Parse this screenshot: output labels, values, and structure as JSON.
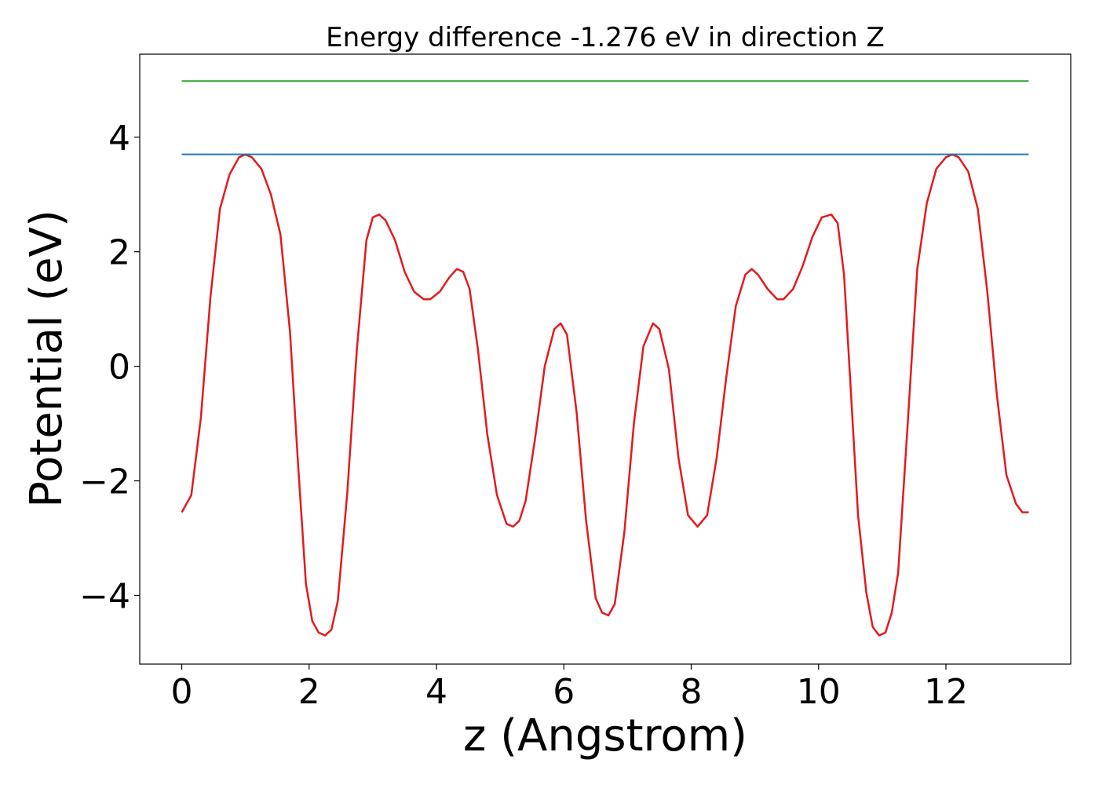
{
  "chart_data": {
    "type": "line",
    "title": "Energy difference -1.276 eV in direction Z",
    "xlabel": "z (Angstrom)",
    "ylabel": "Potential (eV)",
    "xlim": [
      -0.66,
      13.96
    ],
    "ylim": [
      -5.2,
      5.45
    ],
    "xticks": [
      0,
      2,
      4,
      6,
      8,
      10,
      12
    ],
    "xtick_labels": [
      "0",
      "2",
      "4",
      "6",
      "8",
      "10",
      "12"
    ],
    "yticks": [
      -4,
      -2,
      0,
      2,
      4
    ],
    "ytick_labels": [
      "−4",
      "−2",
      "0",
      "2",
      "4"
    ],
    "grid": false,
    "series": [
      {
        "color": "#e31a1c",
        "x": [
          0,
          0.15,
          0.3,
          0.45,
          0.6,
          0.75,
          0.9,
          1.0,
          1.1,
          1.25,
          1.4,
          1.55,
          1.7,
          1.82,
          1.95,
          2.05,
          2.15,
          2.25,
          2.35,
          2.45,
          2.6,
          2.75,
          2.9,
          3.0,
          3.1,
          3.2,
          3.35,
          3.5,
          3.65,
          3.8,
          3.9,
          4.05,
          4.2,
          4.32,
          4.42,
          4.52,
          4.65,
          4.8,
          4.95,
          5.1,
          5.2,
          5.3,
          5.4,
          5.55,
          5.7,
          5.85,
          5.95,
          6.05,
          6.2,
          6.35,
          6.5,
          6.6,
          6.7,
          6.8,
          6.95,
          7.1,
          7.25,
          7.4,
          7.5,
          7.65,
          7.8,
          7.95,
          8.1,
          8.25,
          8.4,
          8.55,
          8.7,
          8.85,
          8.95,
          9.05,
          9.2,
          9.35,
          9.45,
          9.6,
          9.75,
          9.9,
          10.05,
          10.2,
          10.3,
          10.4,
          10.5,
          10.62,
          10.75,
          10.85,
          10.95,
          11.05,
          11.15,
          11.25,
          11.4,
          11.55,
          11.7,
          11.85,
          12.0,
          12.1,
          12.2,
          12.35,
          12.5,
          12.65,
          12.8,
          12.95,
          13.1,
          13.2,
          13.3
        ],
        "y": [
          -2.55,
          -2.25,
          -0.9,
          1.2,
          2.75,
          3.35,
          3.65,
          3.7,
          3.65,
          3.45,
          3.0,
          2.3,
          0.6,
          -1.6,
          -3.8,
          -4.45,
          -4.65,
          -4.7,
          -4.6,
          -4.1,
          -2.2,
          0.3,
          2.2,
          2.6,
          2.65,
          2.55,
          2.2,
          1.65,
          1.3,
          1.17,
          1.17,
          1.3,
          1.55,
          1.7,
          1.65,
          1.35,
          0.3,
          -1.2,
          -2.25,
          -2.75,
          -2.8,
          -2.7,
          -2.35,
          -1.25,
          0.0,
          0.65,
          0.75,
          0.55,
          -0.8,
          -2.7,
          -4.05,
          -4.3,
          -4.35,
          -4.15,
          -2.9,
          -1.0,
          0.35,
          0.75,
          0.65,
          -0.05,
          -1.6,
          -2.6,
          -2.8,
          -2.6,
          -1.6,
          -0.2,
          1.05,
          1.6,
          1.7,
          1.6,
          1.35,
          1.17,
          1.17,
          1.35,
          1.75,
          2.25,
          2.6,
          2.65,
          2.5,
          1.6,
          -0.3,
          -2.6,
          -3.95,
          -4.55,
          -4.7,
          -4.65,
          -4.3,
          -3.6,
          -1.0,
          1.7,
          2.85,
          3.45,
          3.65,
          3.7,
          3.65,
          3.4,
          2.75,
          1.3,
          -0.5,
          -1.9,
          -2.4,
          -2.55,
          -2.55
        ]
      },
      {
        "color": "#1f78b4",
        "x": [
          0,
          13.3
        ],
        "y": [
          3.7,
          3.7
        ]
      },
      {
        "color": "#33a02c",
        "x": [
          0,
          13.3
        ],
        "y": [
          4.98,
          4.98
        ]
      }
    ]
  }
}
